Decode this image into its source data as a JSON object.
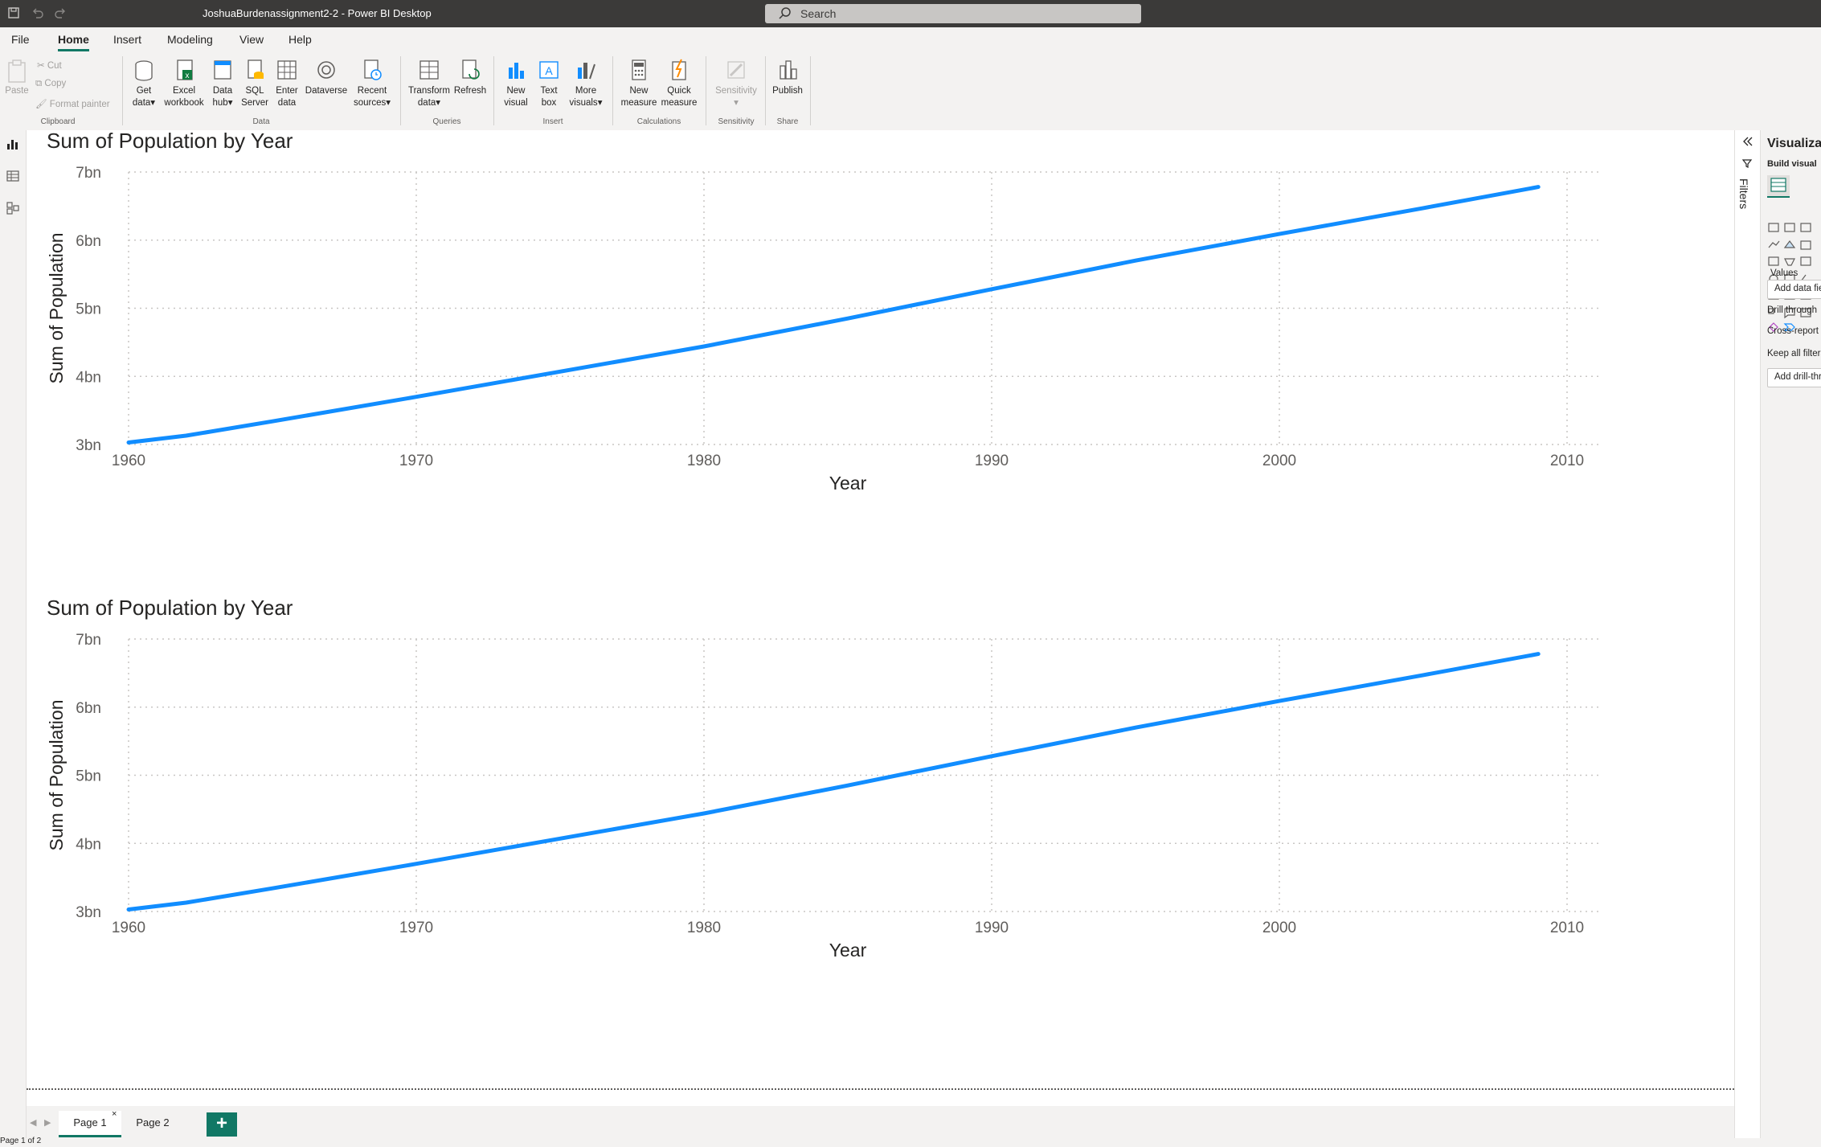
{
  "titlebar": {
    "title": "JoshuaBurdenassignment2-2 - Power BI Desktop",
    "search_placeholder": "Search"
  },
  "menu": [
    "File",
    "Home",
    "Insert",
    "Modeling",
    "View",
    "Help"
  ],
  "ribbon": {
    "clipboard": {
      "paste": "Paste",
      "cut": "Cut",
      "copy": "Copy",
      "format_painter": "Format painter",
      "label": "Clipboard"
    },
    "data": {
      "get_data": [
        "Get",
        "data"
      ],
      "excel": [
        "Excel",
        "workbook"
      ],
      "data_hub": [
        "Data",
        "hub"
      ],
      "sql": [
        "SQL",
        "Server"
      ],
      "enter": [
        "Enter",
        "data"
      ],
      "dataverse": [
        "Dataverse"
      ],
      "recent": [
        "Recent",
        "sources"
      ],
      "label": "Data"
    },
    "queries": {
      "transform": [
        "Transform",
        "data"
      ],
      "refresh": [
        "Refresh"
      ],
      "label": "Queries"
    },
    "insert": {
      "new_visual": [
        "New",
        "visual"
      ],
      "text_box": [
        "Text",
        "box"
      ],
      "more_visuals": [
        "More",
        "visuals"
      ],
      "label": "Insert"
    },
    "calculations": {
      "new_measure": [
        "New",
        "measure"
      ],
      "quick_measure": [
        "Quick",
        "measure"
      ],
      "label": "Calculations"
    },
    "sensitivity": {
      "sensitivity": [
        "Sensitivity"
      ],
      "label": "Sensitivity"
    },
    "share": {
      "publish": [
        "Publish"
      ],
      "label": "Share"
    }
  },
  "chart_data": [
    {
      "type": "line",
      "title": "Sum of Population by Year",
      "xlabel": "Year",
      "ylabel": "Sum of Population",
      "xlim": [
        1960,
        2010
      ],
      "ylim": [
        3,
        7
      ],
      "x_ticks": [
        "1960",
        "1970",
        "1980",
        "1990",
        "2000",
        "2010"
      ],
      "y_ticks": [
        "3bn",
        "4bn",
        "5bn",
        "6bn",
        "7bn"
      ],
      "series": [
        {
          "name": "Sum of Population",
          "color": "#118DFF",
          "x": [
            1960,
            1962,
            1965,
            1970,
            1975,
            1980,
            1985,
            1990,
            1995,
            2000,
            2005,
            2009
          ],
          "values": [
            3.03,
            3.13,
            3.34,
            3.7,
            4.07,
            4.44,
            4.85,
            5.28,
            5.7,
            6.09,
            6.47,
            6.78
          ]
        }
      ]
    },
    {
      "type": "line",
      "title": "Sum of Population by Year",
      "xlabel": "Year",
      "ylabel": "Sum of Population",
      "xlim": [
        1960,
        2010
      ],
      "ylim": [
        3,
        7
      ],
      "x_ticks": [
        "1960",
        "1970",
        "1980",
        "1990",
        "2000",
        "2010"
      ],
      "y_ticks": [
        "3bn",
        "4bn",
        "5bn",
        "6bn",
        "7bn"
      ],
      "series": [
        {
          "name": "Sum of Population",
          "color": "#118DFF",
          "x": [
            1960,
            1962,
            1965,
            1970,
            1975,
            1980,
            1985,
            1990,
            1995,
            2000,
            2005,
            2009
          ],
          "values": [
            3.03,
            3.13,
            3.34,
            3.7,
            4.07,
            4.44,
            4.85,
            5.28,
            5.7,
            6.09,
            6.47,
            6.78
          ]
        }
      ]
    }
  ],
  "filters": {
    "label": "Filters"
  },
  "viz_pane": {
    "title": "Visualizations",
    "build_visual": "Build visual",
    "values_label": "Values",
    "add_data_fields": "Add data fields here",
    "drill_through": "Drill through",
    "cross_report": "Cross-report",
    "keep_all_filters": "Keep all filters",
    "add_drill_through": "Add drill-through fields here"
  },
  "pages": {
    "tabs": [
      "Page 1",
      "Page 2"
    ],
    "add": "+"
  },
  "status": {
    "text": "Page 1 of 2"
  },
  "colors": {
    "accent": "#117865",
    "line": "#118DFF",
    "titlebar": "#3b3a39"
  }
}
